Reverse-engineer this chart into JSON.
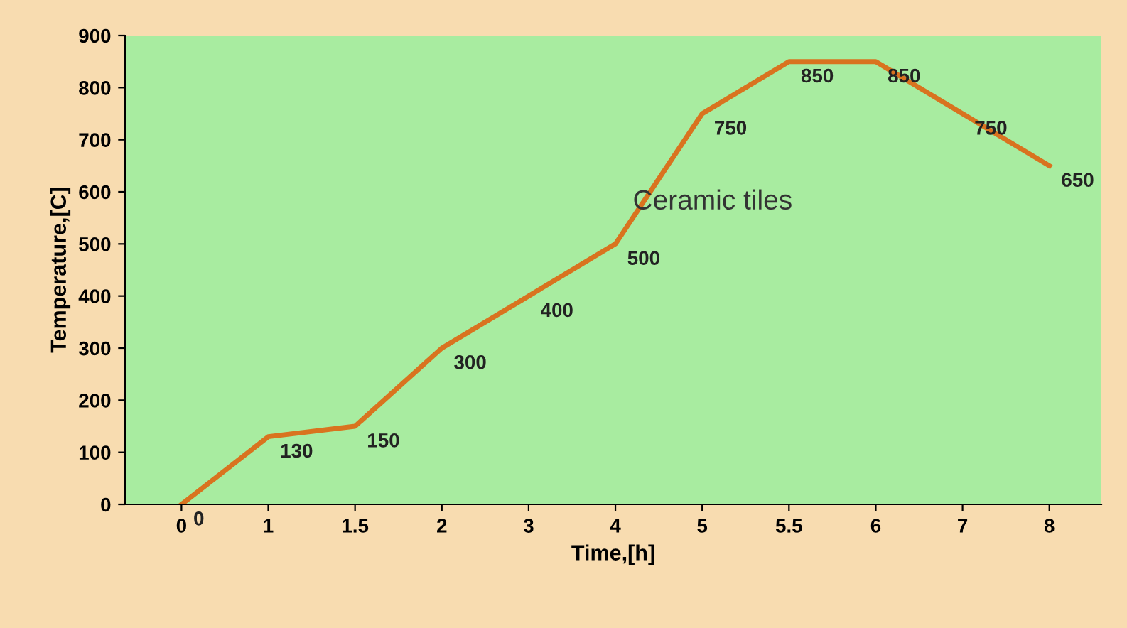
{
  "chart_data": {
    "type": "line",
    "xlabel": "Time,[h]",
    "ylabel": "Temperature,[C]",
    "categories": [
      "0",
      "1",
      "1.5",
      "2",
      "3",
      "4",
      "5",
      "5.5",
      "6",
      "7",
      "8"
    ],
    "series": [
      {
        "name": "Ceramic tiles",
        "color": "#d9731f",
        "values": [
          0,
          130,
          150,
          300,
          400,
          500,
          750,
          850,
          850,
          750,
          650
        ]
      }
    ],
    "ylim": [
      0,
      900
    ],
    "yticks": [
      0,
      100,
      200,
      300,
      400,
      500,
      600,
      700,
      800,
      900
    ],
    "data_labels": true,
    "grid": false,
    "legend": false,
    "marker": "none",
    "line_style": "solid"
  }
}
